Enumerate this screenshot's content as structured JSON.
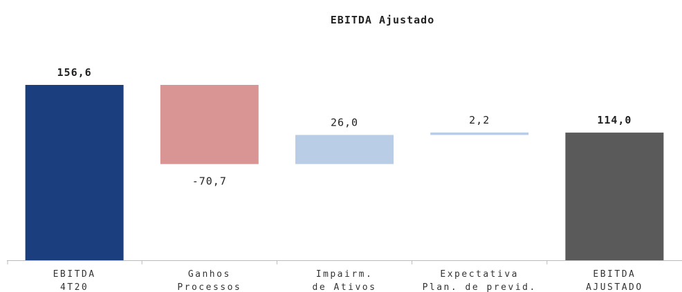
{
  "chart_data": {
    "type": "waterfall",
    "title": "EBITDA Ajustado",
    "categories": [
      [
        "EBITDA",
        "4T20"
      ],
      [
        "Ganhos",
        "Processos"
      ],
      [
        "Impairm.",
        "de Ativos"
      ],
      [
        "Expectativa",
        "Plan. de previd."
      ],
      [
        "EBITDA",
        "AJUSTADO"
      ]
    ],
    "values": [
      156.6,
      -70.7,
      26.0,
      2.2,
      114.0
    ],
    "value_labels": [
      "156,6",
      "-70,7",
      "26,0",
      "2,2",
      "114,0"
    ],
    "colors": [
      "#1b3f7e",
      "#d99594",
      "#b9cde6",
      "#b9cde6",
      "#5a5a5a"
    ]
  }
}
